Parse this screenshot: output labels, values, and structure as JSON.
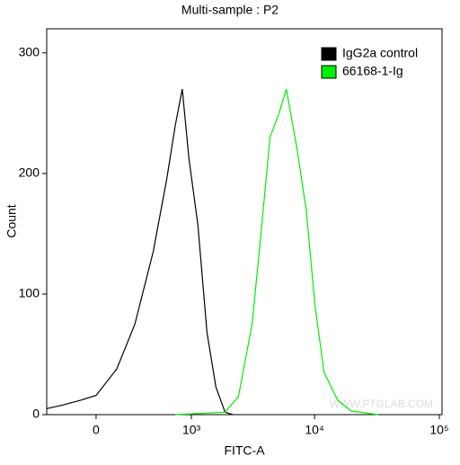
{
  "chart_data": {
    "type": "line",
    "title": "Multi-sample : P2",
    "xlabel": "FITC-A",
    "ylabel": "Count",
    "annotation": "WWW.PTGLAB.COM",
    "xscale": "biexponential",
    "xlim": [
      -370,
      105000
    ],
    "xticks": [
      0,
      {
        "value": 1000,
        "label": "10³"
      },
      {
        "value": 10000,
        "label": "10⁴"
      },
      {
        "value": 100000,
        "label": "10⁵"
      }
    ],
    "ylim": [
      0,
      320
    ],
    "yticks": [
      0,
      100,
      200,
      300
    ],
    "legend": "top-right",
    "series": [
      {
        "name": "IgG2a control",
        "color": "#000000",
        "x": [
          -370,
          -232,
          -102,
          0,
          139,
          276,
          447,
          604,
          724,
          834,
          951,
          1134,
          1350,
          1598,
          1900,
          2200
        ],
        "values": [
          5,
          8,
          12,
          16,
          38,
          75,
          135,
          195,
          240,
          270,
          213,
          157,
          68,
          23,
          2,
          0
        ]
      },
      {
        "name": "66168-1-Ig",
        "color": "#00ee00",
        "x": [
          724,
          1900,
          2442,
          3145,
          3713,
          4384,
          5183,
          5929,
          7242,
          8556,
          10082,
          11900,
          15300,
          19630,
          32160
        ],
        "values": [
          0,
          2,
          15,
          75,
          150,
          230,
          250,
          270,
          220,
          170,
          90,
          35,
          12,
          3,
          0
        ]
      }
    ]
  }
}
